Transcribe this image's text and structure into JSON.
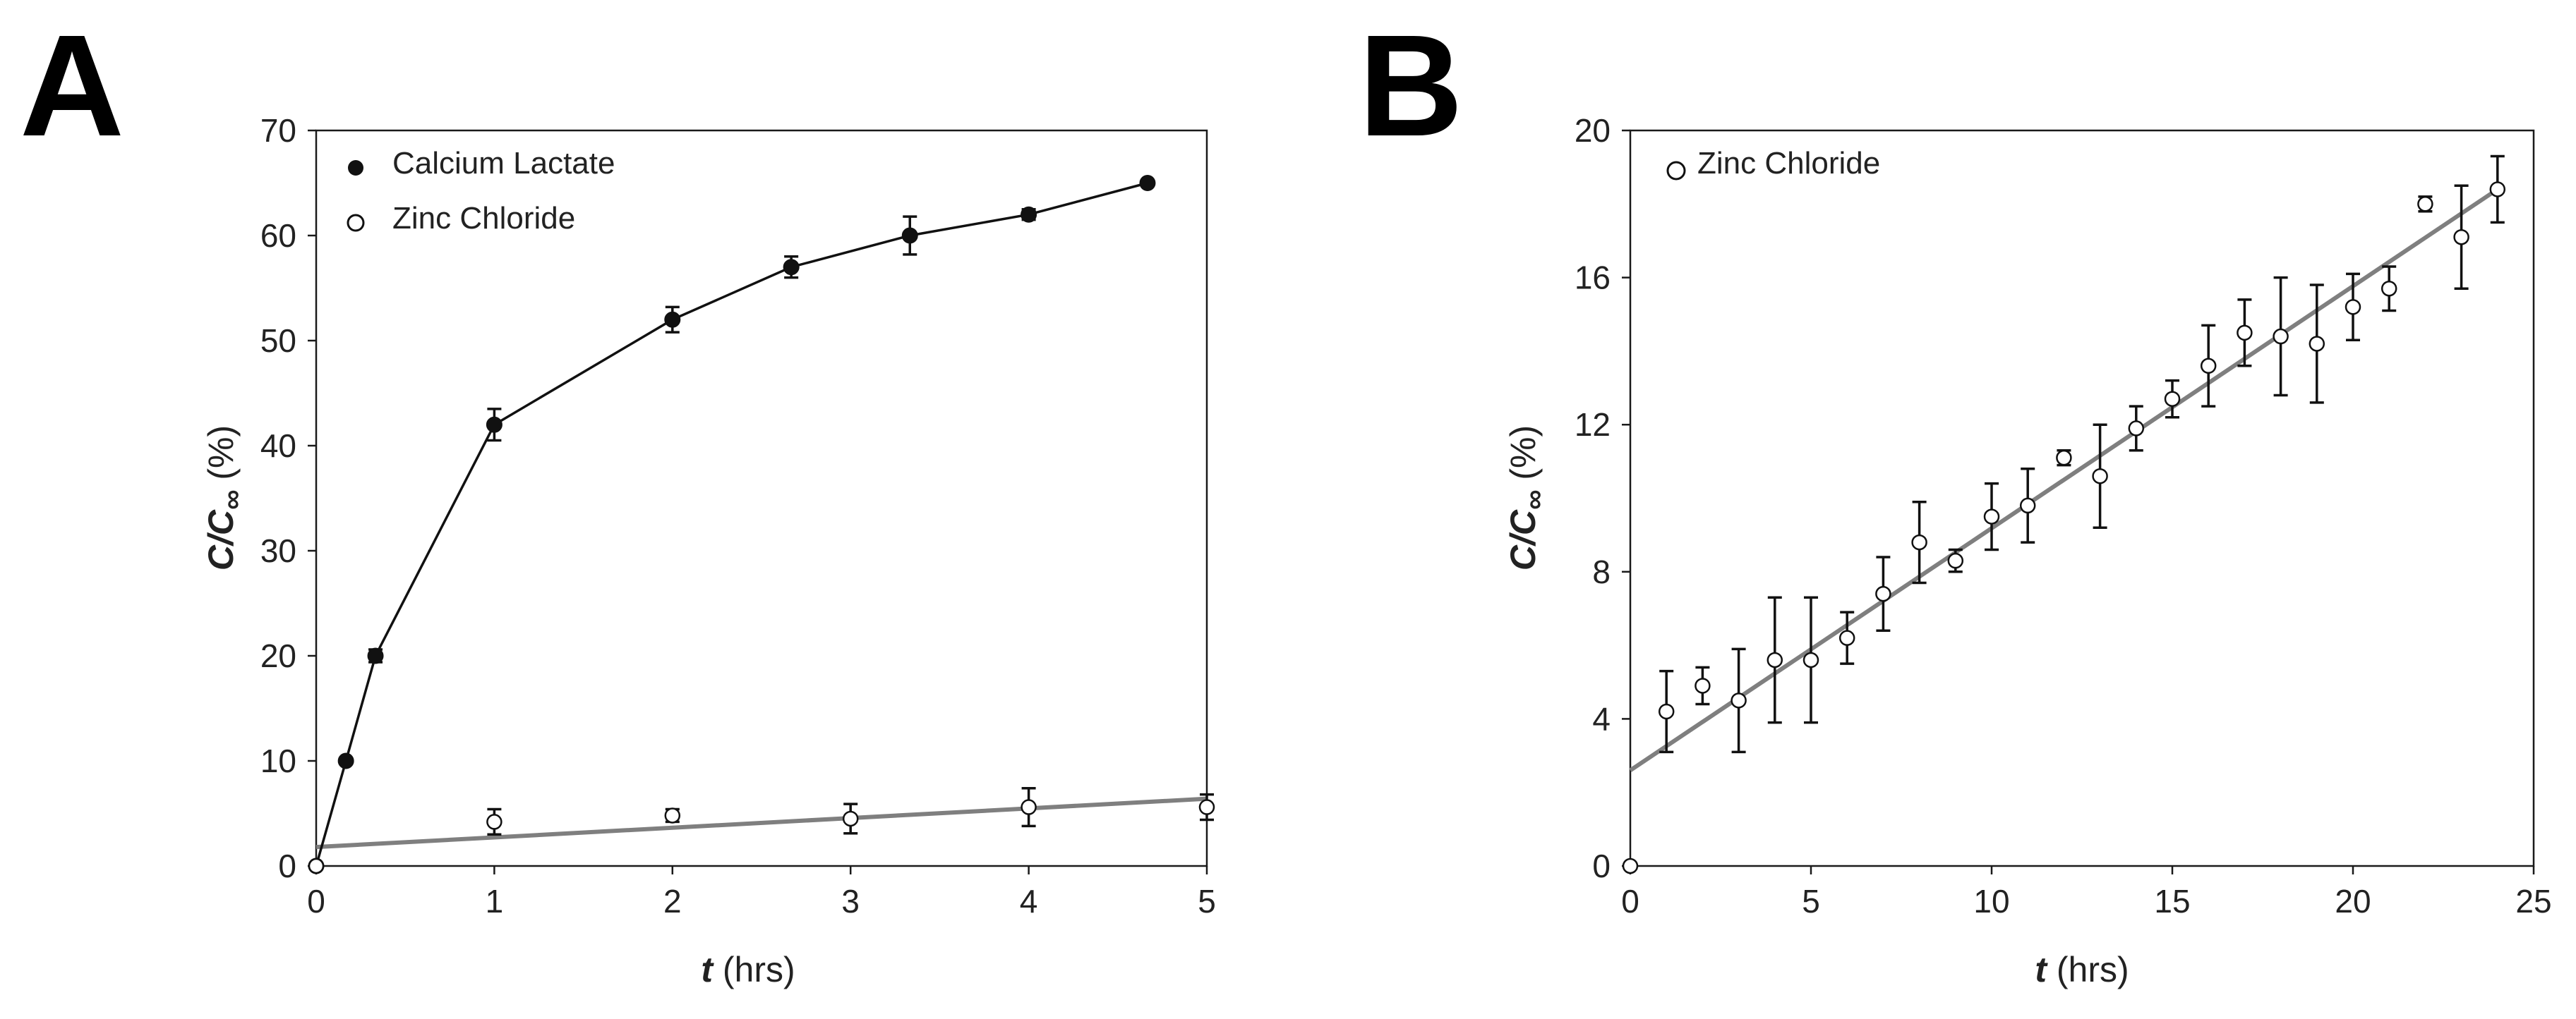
{
  "chart_data": [
    {
      "panel_label": "A",
      "type": "line",
      "xlabel_var": "t",
      "xlabel_unit": " (hrs)",
      "ylabel_main": "C/C",
      "ylabel_sub": "∞",
      "ylabel_unit": " (%)",
      "xlim": [
        0,
        5
      ],
      "ylim": [
        0,
        70
      ],
      "xticks": [
        0,
        1,
        2,
        3,
        4,
        5
      ],
      "yticks": [
        0,
        10,
        20,
        30,
        40,
        50,
        60,
        70
      ],
      "legend_position": "top-left",
      "series": [
        {
          "name": "Calcium Lactate",
          "marker": "filled-circle",
          "line": "connected",
          "line_color": "#111111",
          "x": [
            0,
            0.167,
            0.333,
            1,
            2,
            2.667,
            3.333,
            4,
            4.667
          ],
          "y": [
            0,
            10,
            20,
            42,
            52,
            57,
            60,
            62,
            65
          ],
          "err": [
            0,
            0,
            0.6,
            1.5,
            1.2,
            1.0,
            1.8,
            0.5,
            0
          ]
        },
        {
          "name": "Zinc Chloride",
          "marker": "open-circle",
          "line": "none",
          "x": [
            0,
            1,
            2,
            3,
            4,
            5
          ],
          "y": [
            0,
            4.2,
            4.8,
            4.5,
            5.6,
            5.6
          ],
          "err": [
            0,
            1.2,
            0.6,
            1.4,
            1.8,
            1.2
          ]
        }
      ],
      "fit_line": {
        "color": "#7f7f7f",
        "x": [
          0,
          5
        ],
        "y": [
          1.8,
          6.4
        ]
      }
    },
    {
      "panel_label": "B",
      "type": "scatter",
      "xlabel_var": "t",
      "xlabel_unit": " (hrs)",
      "ylabel_main": "C/C",
      "ylabel_sub": "∞",
      "ylabel_unit": " (%)",
      "xlim": [
        0,
        25
      ],
      "ylim": [
        0,
        20
      ],
      "xticks": [
        0,
        5,
        10,
        15,
        20,
        25
      ],
      "yticks": [
        0,
        4,
        8,
        12,
        16,
        20
      ],
      "legend_position": "top-left",
      "series": [
        {
          "name": "Zinc Chloride",
          "marker": "open-circle",
          "line": "none",
          "x": [
            0,
            1,
            2,
            3,
            4,
            5,
            6,
            7,
            8,
            9,
            10,
            11,
            12,
            13,
            14,
            15,
            16,
            17,
            18,
            19,
            20,
            21,
            22,
            23,
            24
          ],
          "y": [
            0,
            4.2,
            4.9,
            4.5,
            5.6,
            5.6,
            6.2,
            7.4,
            8.8,
            8.3,
            9.5,
            9.8,
            11.1,
            10.6,
            11.9,
            12.7,
            13.6,
            14.5,
            14.4,
            14.2,
            15.2,
            15.7,
            18.0,
            17.1,
            18.4
          ],
          "err": [
            0,
            1.1,
            0.5,
            1.4,
            1.7,
            1.7,
            0.7,
            1.0,
            1.1,
            0.3,
            0.9,
            1.0,
            0.2,
            1.4,
            0.6,
            0.5,
            1.1,
            0.9,
            1.6,
            1.6,
            0.9,
            0.6,
            0.2,
            1.4,
            0.9
          ]
        }
      ],
      "fit_line": {
        "color": "#7f7f7f",
        "x": [
          0,
          24
        ],
        "y": [
          2.6,
          18.4
        ]
      }
    }
  ]
}
